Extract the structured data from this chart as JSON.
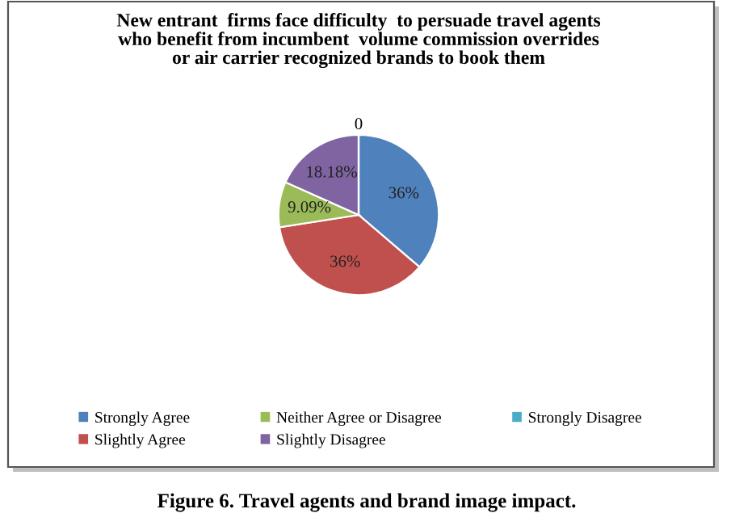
{
  "chart_data": {
    "type": "pie",
    "title": "New entrant  firms face difficulty  to persuade travel agents\nwho benefit from incumbent  volume commission overrides\nor air carrier recognized brands to book them",
    "categories": [
      "Strongly Agree",
      "Slightly Agree",
      "Neither Agree or Disagree",
      "Slightly Disagree",
      "Strongly Disagree"
    ],
    "values": [
      36,
      36,
      9.09,
      18.18,
      0
    ],
    "value_labels": [
      "36%",
      "36%",
      "9.09%",
      "18.18%",
      "0"
    ],
    "colors": [
      "#4f81bd",
      "#c0504d",
      "#9bbb59",
      "#8064a2",
      "#4bacc6"
    ],
    "legend": "bottom",
    "annotations": [
      "Figure 6. Travel agents and brand image impact."
    ]
  }
}
